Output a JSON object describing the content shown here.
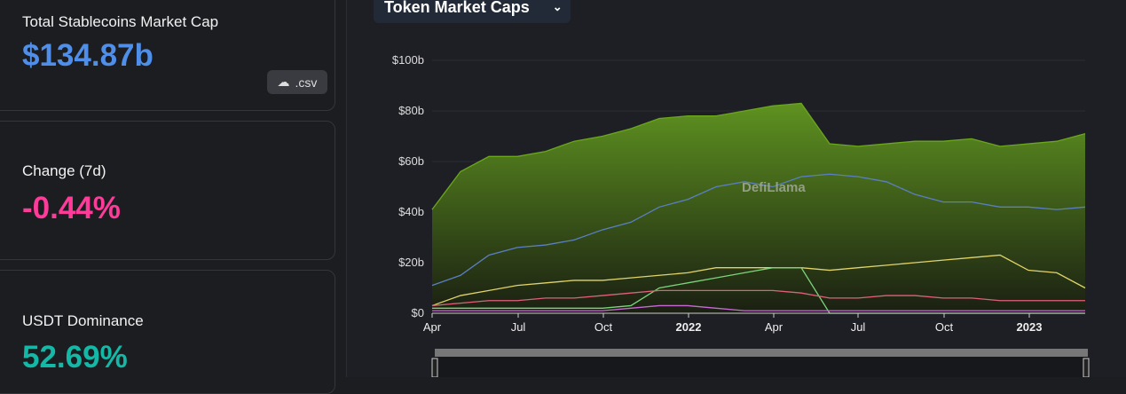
{
  "cards": {
    "total": {
      "label": "Total Stablecoins Market Cap",
      "value": "$134.87b",
      "csv": ".csv"
    },
    "change": {
      "label": "Change (7d)",
      "value": "-0.44%"
    },
    "dominance": {
      "label": "USDT Dominance",
      "value": "52.69%"
    }
  },
  "colors": {
    "total": "#4f8fea",
    "change": "#fd3c99",
    "dominance": "#14b8a6"
  },
  "dropdown": {
    "label": "Token Market Caps"
  },
  "watermark": "DefiLlama",
  "chart_data": {
    "type": "area",
    "ylim": [
      0,
      100
    ],
    "grid": true,
    "yticks": [
      "$0",
      "$20b",
      "$40b",
      "$60b",
      "$80b",
      "$100b"
    ],
    "ytick_values": [
      0,
      20,
      40,
      60,
      80,
      100
    ],
    "xticks": [
      "Apr",
      "Jul",
      "Oct",
      "2022",
      "Apr",
      "Jul",
      "Oct",
      "2023"
    ],
    "x": [
      "2021-04",
      "2021-05",
      "2021-06",
      "2021-07",
      "2021-08",
      "2021-09",
      "2021-10",
      "2021-11",
      "2021-12",
      "2022-01",
      "2022-02",
      "2022-03",
      "2022-04",
      "2022-05",
      "2022-06",
      "2022-07",
      "2022-08",
      "2022-09",
      "2022-10",
      "2022-11",
      "2022-12",
      "2023-01",
      "2023-02",
      "2023-03"
    ],
    "series": [
      {
        "color": "#6aa61e",
        "fill": true,
        "values": [
          41,
          56,
          62,
          62,
          64,
          68,
          70,
          73,
          77,
          78,
          78,
          80,
          82,
          83,
          67,
          66,
          67,
          68,
          68,
          69,
          66,
          67,
          68,
          71
        ]
      },
      {
        "color": "#5b7fc4",
        "values": [
          11,
          15,
          23,
          26,
          27,
          29,
          33,
          36,
          42,
          45,
          50,
          52,
          50,
          54,
          55,
          54,
          52,
          47,
          44,
          44,
          42,
          42,
          41,
          42
        ]
      },
      {
        "color": "#e0d36a",
        "values": [
          3,
          7,
          9,
          11,
          12,
          13,
          13,
          14,
          15,
          16,
          18,
          18,
          18,
          18,
          17,
          18,
          19,
          20,
          21,
          22,
          23,
          17,
          16,
          10
        ]
      },
      {
        "color": "#7bd47b",
        "values": [
          2,
          2,
          2,
          2,
          2,
          2,
          2,
          3,
          10,
          12,
          14,
          16,
          18,
          18,
          0,
          0,
          0,
          0,
          0,
          0,
          0,
          0,
          0,
          0
        ]
      },
      {
        "color": "#e0607a",
        "values": [
          3,
          4,
          5,
          5,
          6,
          6,
          7,
          8,
          9,
          9,
          9,
          9,
          9,
          8,
          6,
          6,
          7,
          7,
          6,
          6,
          5,
          5,
          5,
          5
        ]
      },
      {
        "color": "#c86ad6",
        "values": [
          1,
          1,
          1,
          1,
          1,
          1,
          1,
          2,
          3,
          3,
          2,
          1,
          1,
          1,
          1,
          1,
          1,
          1,
          1,
          1,
          1,
          1,
          1,
          1
        ]
      }
    ]
  }
}
